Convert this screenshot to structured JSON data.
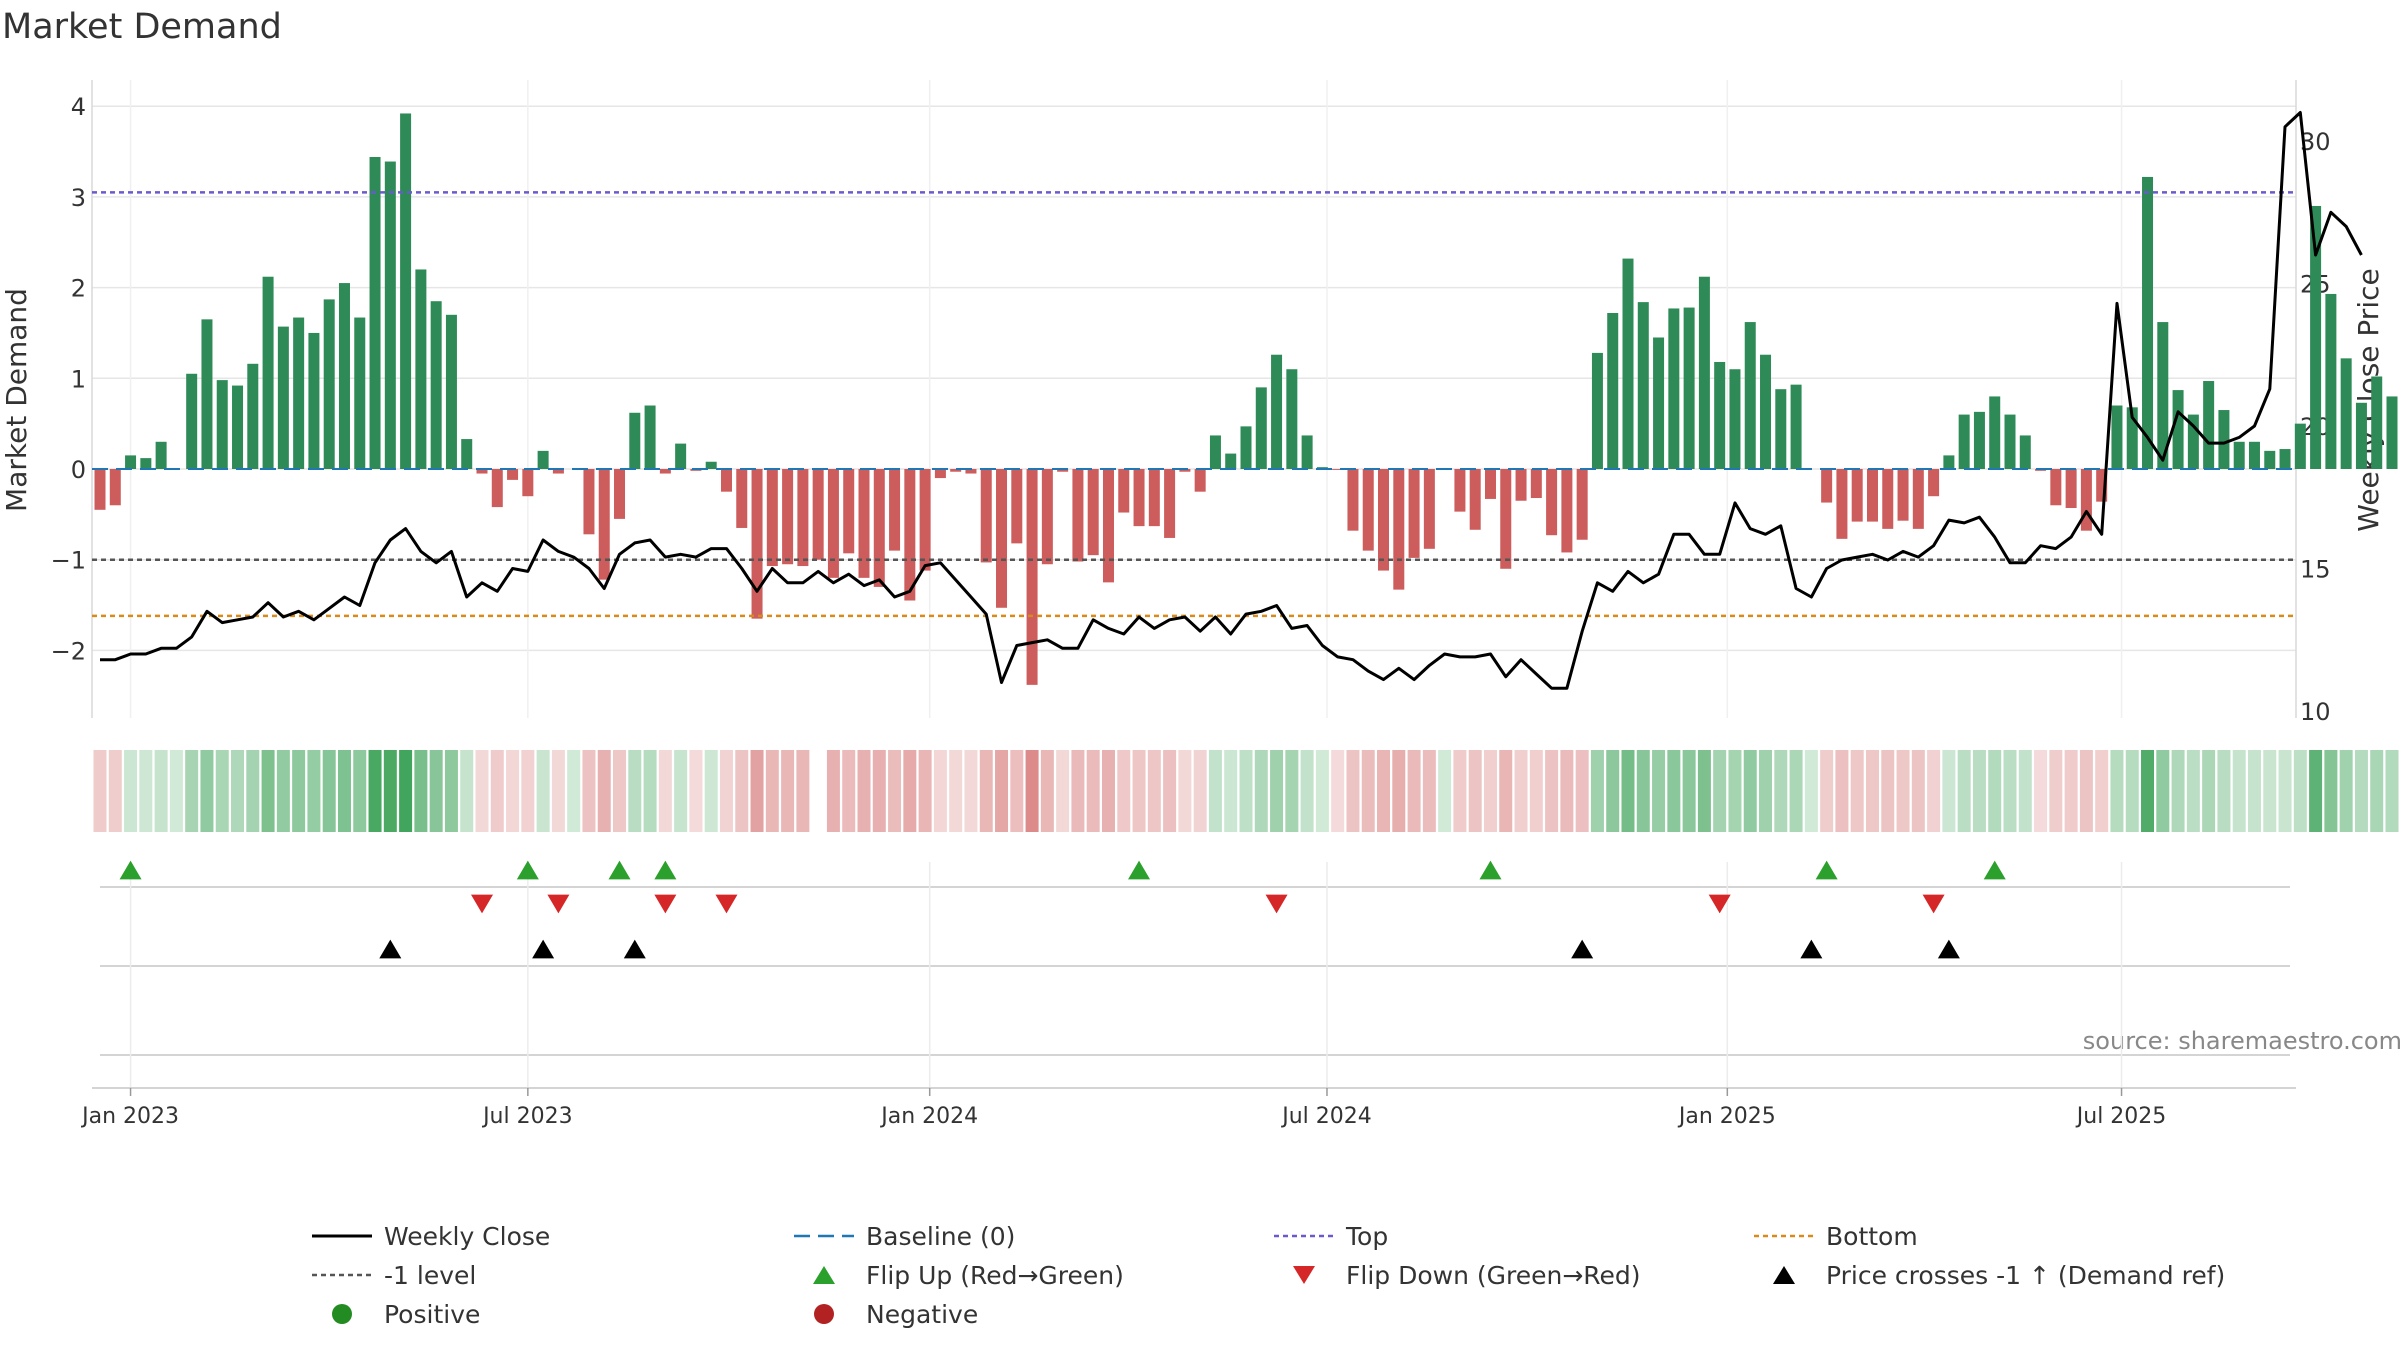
{
  "chart_data": {
    "type": "bar",
    "title": "Market Demand",
    "ylabel": "Market Demand",
    "y2label": "Weekly Close Price",
    "xlabel": "",
    "ylim": [
      -2.75,
      4.25
    ],
    "y2lim": [
      9,
      31.8
    ],
    "yticks": [
      -2,
      -1,
      0,
      1,
      2,
      3,
      4
    ],
    "ytick_labels": [
      "−2",
      "−1",
      "0",
      "1",
      "2",
      "3",
      "4"
    ],
    "y2ticks": [
      10,
      15,
      20,
      25,
      30
    ],
    "y2tick_labels": [
      "10",
      "15",
      "20",
      "25",
      "30"
    ],
    "xticks": [
      {
        "label": "Jan 2023",
        "week": 2
      },
      {
        "label": "Jul 2023",
        "week": 28
      },
      {
        "label": "Jan 2024",
        "week": 54.3
      },
      {
        "label": "Jul 2024",
        "week": 80.3
      },
      {
        "label": "Jan 2025",
        "week": 106.5
      },
      {
        "label": "Jul 2025",
        "week": 132.3
      }
    ],
    "levels": {
      "top": 3.05,
      "minus_one": -1,
      "bottom": -1.62,
      "baseline": 0
    },
    "colors": {
      "positive": "#2e8b57",
      "negative": "#cd5c5c",
      "close": "#000000",
      "baseline": "#1f77b4",
      "top": "#6a5acd",
      "minus_one": "#555555",
      "bottom": "#d98b1a",
      "flip_up": "#2ca02c",
      "flip_down": "#d62728",
      "cross": "#000000",
      "positive_dot": "#228b22",
      "negative_dot": "#b22222"
    },
    "demand": [
      -0.45,
      -0.4,
      0.15,
      0.12,
      0.3,
      0.0,
      1.05,
      1.65,
      0.98,
      0.92,
      1.16,
      2.12,
      1.57,
      1.67,
      1.5,
      1.87,
      2.05,
      1.67,
      3.44,
      3.39,
      3.92,
      2.2,
      1.85,
      1.7,
      0.33,
      -0.05,
      -0.42,
      -0.12,
      -0.3,
      0.2,
      -0.05,
      0.0,
      -0.72,
      -1.22,
      -0.55,
      0.62,
      0.7,
      -0.05,
      0.28,
      -0.02,
      0.08,
      -0.25,
      -0.65,
      -1.65,
      -1.07,
      -1.05,
      -1.07,
      -1.0,
      -1.2,
      -0.93,
      -1.2,
      -1.3,
      -0.9,
      -1.45,
      -1.12,
      -0.1,
      -0.03,
      -0.05,
      -1.03,
      -1.53,
      -0.82,
      -2.38,
      -1.05,
      -0.03,
      -1.02,
      -0.95,
      -1.25,
      -0.48,
      -0.63,
      -0.63,
      -0.76,
      -0.03,
      -0.25,
      0.37,
      0.17,
      0.47,
      0.9,
      1.26,
      1.1,
      0.37,
      0.02,
      -0.01,
      -0.68,
      -0.9,
      -1.12,
      -1.33,
      -0.98,
      -0.88,
      0.0,
      -0.47,
      -0.67,
      -0.33,
      -1.1,
      -0.35,
      -0.32,
      -0.73,
      -0.92,
      -0.78,
      1.28,
      1.72,
      2.32,
      1.84,
      1.45,
      1.77,
      1.78,
      2.12,
      1.18,
      1.1,
      1.62,
      1.26,
      0.88,
      0.93,
      0.0,
      -0.37,
      -0.77,
      -0.58,
      -0.58,
      -0.66,
      -0.57,
      -0.66,
      -0.3,
      0.15,
      0.6,
      0.63,
      0.8,
      0.6,
      0.37,
      -0.02,
      -0.4,
      -0.43,
      -0.68,
      -0.36,
      0.7,
      0.68,
      3.22,
      1.62,
      0.87,
      0.6,
      0.97,
      0.65,
      0.3,
      0.3,
      0.2,
      0.22,
      0.5,
      2.9,
      1.93,
      1.22,
      0.73,
      1.02,
      0.8
    ],
    "close": [
      11.8,
      11.8,
      12.0,
      12.0,
      12.2,
      12.2,
      12.6,
      13.5,
      13.1,
      13.2,
      13.3,
      13.8,
      13.3,
      13.5,
      13.2,
      13.6,
      14.0,
      13.7,
      15.2,
      16.0,
      16.4,
      15.6,
      15.2,
      15.6,
      14.0,
      14.5,
      14.2,
      15.0,
      14.9,
      16.0,
      15.6,
      15.4,
      15.0,
      14.3,
      15.5,
      15.9,
      16.0,
      15.4,
      15.5,
      15.4,
      15.7,
      15.7,
      15.0,
      14.2,
      15.0,
      14.5,
      14.5,
      14.9,
      14.5,
      14.8,
      14.4,
      14.6,
      14.0,
      14.2,
      15.1,
      15.2,
      14.6,
      14.0,
      13.4,
      11.0,
      12.3,
      12.4,
      12.5,
      12.2,
      12.2,
      13.2,
      12.9,
      12.7,
      13.3,
      12.9,
      13.2,
      13.3,
      12.8,
      13.3,
      12.7,
      13.4,
      13.5,
      13.7,
      12.9,
      13.0,
      12.3,
      11.9,
      11.8,
      11.4,
      11.1,
      11.5,
      11.1,
      11.6,
      12.0,
      11.9,
      11.9,
      12.0,
      11.2,
      11.8,
      11.3,
      10.8,
      10.8,
      12.8,
      14.5,
      14.2,
      14.9,
      14.5,
      14.8,
      16.2,
      16.2,
      15.5,
      15.5,
      17.3,
      16.4,
      16.2,
      16.5,
      14.3,
      14.0,
      15.0,
      15.3,
      15.4,
      15.5,
      15.3,
      15.6,
      15.4,
      15.8,
      16.7,
      16.6,
      16.8,
      16.1,
      15.2,
      15.2,
      15.8,
      15.7,
      16.1,
      17.0,
      16.2,
      24.3,
      20.3,
      19.6,
      18.8,
      20.5,
      20.0,
      19.4,
      19.4,
      19.6,
      20.0,
      21.3,
      30.5,
      31.0,
      26.0,
      27.5,
      27.0,
      26.0
    ],
    "heat_gap": [
      47
    ],
    "flip_up": [
      2,
      28,
      34,
      37,
      68,
      91,
      113,
      124
    ],
    "flip_down": [
      25,
      30,
      37,
      41,
      77,
      106,
      120
    ],
    "cross": [
      19,
      29,
      35,
      97,
      112,
      121
    ],
    "source": "source: sharemaestro.com",
    "legend": [
      {
        "label": "Weekly Close",
        "kind": "line",
        "color": "#000000"
      },
      {
        "label": "Baseline (0)",
        "kind": "dash",
        "color": "#1f77b4"
      },
      {
        "label": "Top",
        "kind": "dot",
        "color": "#6a5acd"
      },
      {
        "label": "Bottom",
        "kind": "dot",
        "color": "#d98b1a"
      },
      {
        "label": "-1 level",
        "kind": "dot",
        "color": "#555555"
      },
      {
        "label": "Flip Up (Red→Green)",
        "kind": "tri-up",
        "color": "#2ca02c"
      },
      {
        "label": "Flip Down (Green→Red)",
        "kind": "tri-down",
        "color": "#d62728"
      },
      {
        "label": "Price crosses -1 ↑ (Demand ref)",
        "kind": "tri-up",
        "color": "#000000"
      },
      {
        "label": "Positive",
        "kind": "circle",
        "color": "#228b22"
      },
      {
        "label": "Negative",
        "kind": "circle",
        "color": "#b22222"
      }
    ]
  }
}
